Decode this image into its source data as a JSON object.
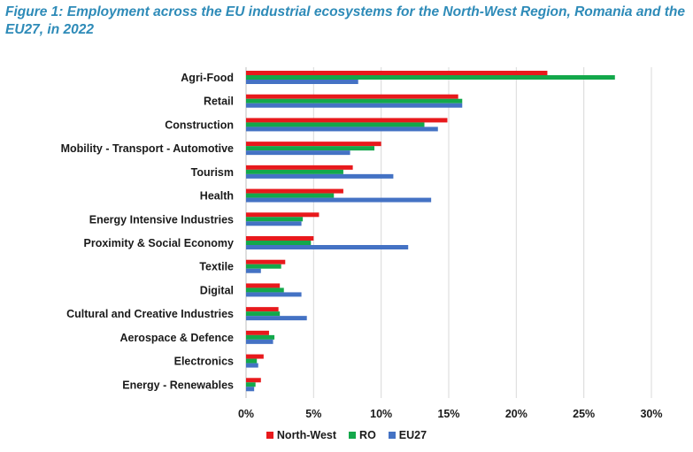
{
  "figure": {
    "title": "Figure 1: Employment across the EU industrial ecosystems for the North-West Region, Romania and the EU27, in 2022"
  },
  "chart_data": {
    "type": "bar",
    "orientation": "horizontal",
    "title": "Figure 1: Employment across the EU industrial ecosystems for the North-West Region, Romania and the EU27, in 2022",
    "xlabel": "",
    "ylabel": "",
    "xlim": [
      0,
      30
    ],
    "xticks": [
      "0%",
      "5%",
      "10%",
      "15%",
      "20%",
      "25%",
      "30%"
    ],
    "grid": true,
    "legend_position": "bottom",
    "categories": [
      "Agri-Food",
      "Retail",
      "Construction",
      "Mobility - Transport - Automotive",
      "Tourism",
      "Health",
      "Energy Intensive Industries",
      "Proximity & Social Economy",
      "Textile",
      "Digital",
      "Cultural and Creative Industries",
      "Aerospace & Defence",
      "Electronics",
      "Energy - Renewables"
    ],
    "series": [
      {
        "name": "North-West",
        "color": "#e8191c",
        "values": [
          22.3,
          15.7,
          14.9,
          10.0,
          7.9,
          7.2,
          5.4,
          5.0,
          2.9,
          2.5,
          2.4,
          1.7,
          1.3,
          1.1
        ]
      },
      {
        "name": "RO",
        "color": "#13a84b",
        "values": [
          27.3,
          16.0,
          13.2,
          9.5,
          7.2,
          6.5,
          4.2,
          4.8,
          2.6,
          2.8,
          2.5,
          2.1,
          0.8,
          0.7
        ]
      },
      {
        "name": "EU27",
        "color": "#4472c4",
        "values": [
          8.3,
          16.0,
          14.2,
          7.7,
          10.9,
          13.7,
          4.1,
          12.0,
          1.1,
          4.1,
          4.5,
          2.0,
          0.9,
          0.6
        ]
      }
    ]
  }
}
